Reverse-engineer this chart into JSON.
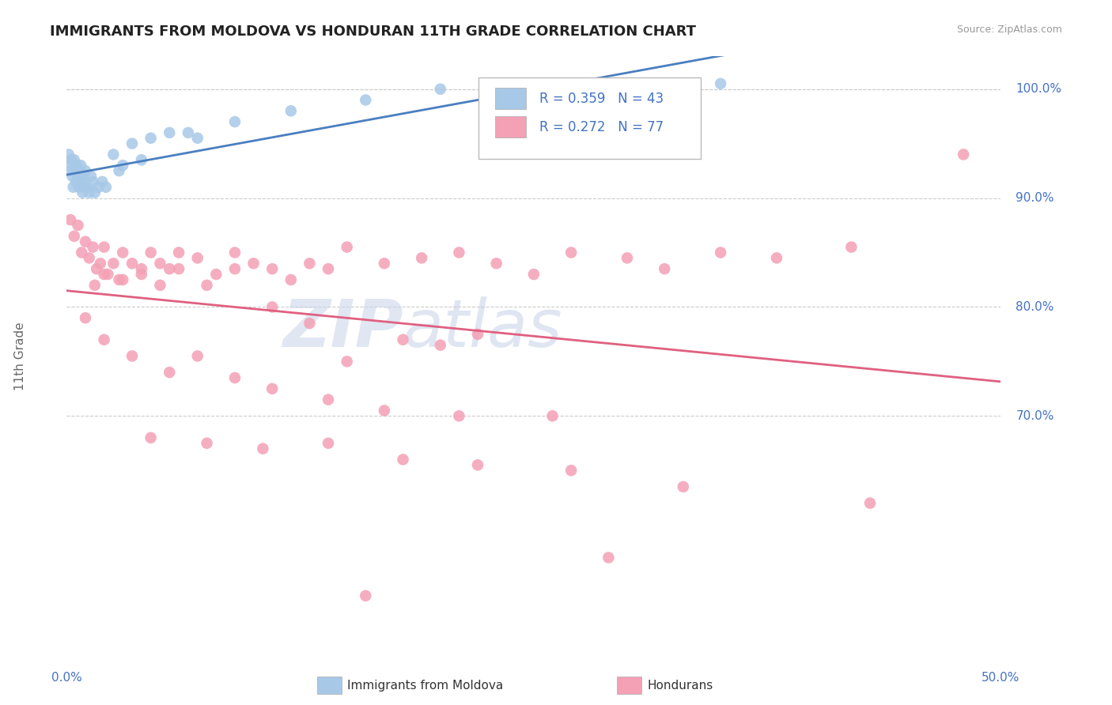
{
  "title": "IMMIGRANTS FROM MOLDOVA VS HONDURAN 11TH GRADE CORRELATION CHART",
  "source_text": "Source: ZipAtlas.com",
  "ylabel": "11th Grade",
  "moldova_color": "#A8C8E8",
  "honduras_color": "#F4A0B5",
  "moldova_line_color": "#4A7FC0",
  "honduras_line_color": "#E06080",
  "legend_r1": "R = 0.359",
  "legend_n1": "N = 43",
  "legend_r2": "R = 0.272",
  "legend_n2": "N = 77",
  "legend_label1": "Immigrants from Moldova",
  "legend_label2": "Hondurans",
  "title_color": "#222222",
  "axis_label_color": "#4472C4",
  "grid_color": "#CCCCCC",
  "xmin": 0.0,
  "xmax": 50.0,
  "ymin": 48.0,
  "ymax": 103.0,
  "ytick_vals": [
    70.0,
    80.0,
    90.0,
    100.0
  ],
  "ytick_labels": [
    "70.0%",
    "80.0%",
    "90.0%",
    "100.0%"
  ],
  "moldova_x": [
    0.1,
    0.15,
    0.2,
    0.25,
    0.3,
    0.35,
    0.4,
    0.45,
    0.5,
    0.55,
    0.6,
    0.65,
    0.7,
    0.75,
    0.8,
    0.85,
    0.9,
    0.95,
    1.0,
    1.1,
    1.2,
    1.3,
    1.4,
    1.5,
    1.7,
    1.9,
    2.1,
    2.5,
    3.0,
    3.5,
    4.5,
    5.5,
    7.0,
    9.0,
    12.0,
    16.0,
    20.0,
    25.0,
    30.0,
    35.0,
    2.8,
    4.0,
    6.5
  ],
  "moldova_y": [
    94.0,
    93.0,
    92.5,
    93.5,
    92.0,
    91.0,
    93.5,
    92.5,
    91.5,
    93.0,
    92.0,
    91.0,
    92.5,
    93.0,
    91.5,
    90.5,
    92.0,
    91.0,
    92.5,
    91.0,
    90.5,
    92.0,
    91.5,
    90.5,
    91.0,
    91.5,
    91.0,
    94.0,
    93.0,
    95.0,
    95.5,
    96.0,
    95.5,
    97.0,
    98.0,
    99.0,
    100.0,
    100.0,
    100.0,
    100.5,
    92.5,
    93.5,
    96.0
  ],
  "honduras_x": [
    0.2,
    0.4,
    0.6,
    0.8,
    1.0,
    1.2,
    1.4,
    1.6,
    1.8,
    2.0,
    2.2,
    2.5,
    2.8,
    3.0,
    3.5,
    4.0,
    4.5,
    5.0,
    5.5,
    6.0,
    7.0,
    8.0,
    9.0,
    10.0,
    11.0,
    12.0,
    13.0,
    14.0,
    15.0,
    17.0,
    19.0,
    21.0,
    23.0,
    25.0,
    27.0,
    30.0,
    32.0,
    35.0,
    38.0,
    42.0,
    48.0,
    1.5,
    2.0,
    3.0,
    4.0,
    5.0,
    6.0,
    7.5,
    9.0,
    11.0,
    13.0,
    15.0,
    18.0,
    20.0,
    22.0,
    1.0,
    2.0,
    3.5,
    5.5,
    7.0,
    9.0,
    11.0,
    14.0,
    17.0,
    21.0,
    26.0,
    4.5,
    7.5,
    10.5,
    14.0,
    18.0,
    22.0,
    27.0,
    33.0,
    43.0,
    16.0,
    29.0
  ],
  "honduras_y": [
    88.0,
    86.5,
    87.5,
    85.0,
    86.0,
    84.5,
    85.5,
    83.5,
    84.0,
    85.5,
    83.0,
    84.0,
    82.5,
    85.0,
    84.0,
    83.5,
    85.0,
    84.0,
    83.5,
    85.0,
    84.5,
    83.0,
    85.0,
    84.0,
    83.5,
    82.5,
    84.0,
    83.5,
    85.5,
    84.0,
    84.5,
    85.0,
    84.0,
    83.0,
    85.0,
    84.5,
    83.5,
    85.0,
    84.5,
    85.5,
    94.0,
    82.0,
    83.0,
    82.5,
    83.0,
    82.0,
    83.5,
    82.0,
    83.5,
    80.0,
    78.5,
    75.0,
    77.0,
    76.5,
    77.5,
    79.0,
    77.0,
    75.5,
    74.0,
    75.5,
    73.5,
    72.5,
    71.5,
    70.5,
    70.0,
    70.0,
    68.0,
    67.5,
    67.0,
    67.5,
    66.0,
    65.5,
    65.0,
    63.5,
    62.0,
    53.5,
    57.0
  ]
}
